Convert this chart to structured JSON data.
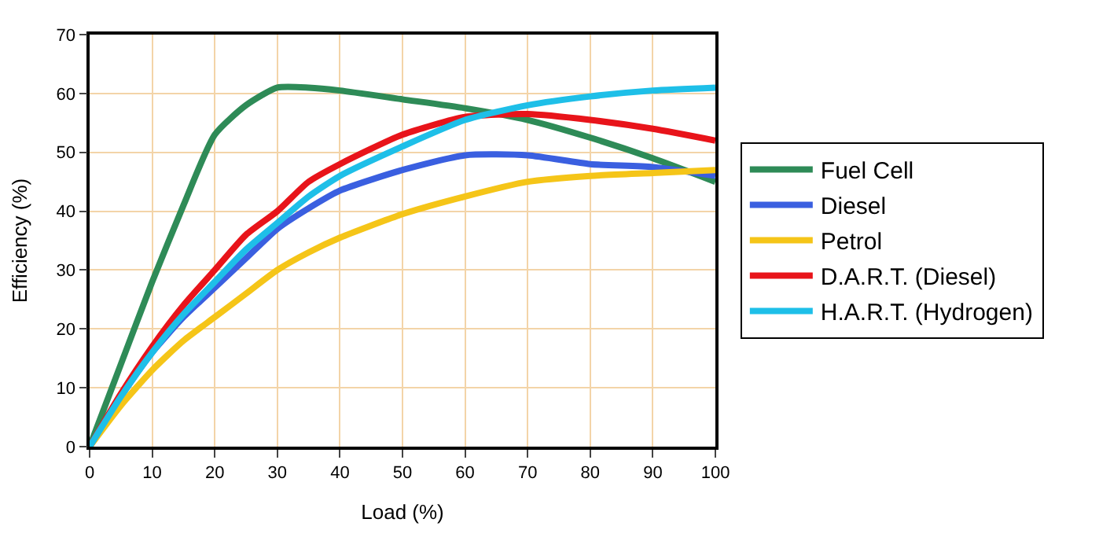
{
  "chart_data": {
    "type": "line",
    "xlabel": "Load (%)",
    "ylabel": "Efficiency (%)",
    "x": [
      0,
      5,
      10,
      15,
      20,
      25,
      30,
      35,
      40,
      50,
      60,
      70,
      80,
      90,
      100
    ],
    "series": [
      {
        "name": "Fuel Cell",
        "color": "#2e8b57",
        "values": [
          0,
          14,
          28,
          41,
          53,
          58,
          61,
          61,
          60.5,
          59,
          57.5,
          55.5,
          52.5,
          49,
          45
        ]
      },
      {
        "name": "Diesel",
        "color": "#3a5fe0",
        "values": [
          0,
          8.5,
          16,
          22,
          27,
          32,
          37,
          40.5,
          43.5,
          47,
          49.5,
          49.5,
          48,
          47.5,
          46
        ]
      },
      {
        "name": "Petrol",
        "color": "#f5c518",
        "values": [
          0,
          7,
          13,
          18,
          22,
          26,
          30,
          33,
          35.5,
          39.5,
          42.5,
          45,
          46,
          46.5,
          47
        ]
      },
      {
        "name": "D.A.R.T. (Diesel)",
        "color": "#e8141a",
        "values": [
          0,
          9,
          17,
          24,
          30,
          36,
          40,
          45,
          48,
          53,
          56,
          56.5,
          55.5,
          54,
          52
        ]
      },
      {
        "name": "H.A.R.T. (Hydrogen)",
        "color": "#1ebfe8",
        "values": [
          0,
          8.5,
          16,
          22.5,
          28,
          33.5,
          38,
          42.5,
          46,
          51,
          55.5,
          58,
          59.5,
          60.5,
          61
        ]
      }
    ],
    "xlim": [
      0,
      100
    ],
    "xticks": [
      0,
      10,
      20,
      30,
      40,
      50,
      60,
      70,
      80,
      90,
      100
    ],
    "ylim": [
      0,
      70
    ],
    "yticks": [
      0,
      10,
      20,
      30,
      40,
      50,
      60,
      70
    ],
    "grid": true,
    "legend": "right",
    "marker": "none",
    "line_style": "solid"
  }
}
